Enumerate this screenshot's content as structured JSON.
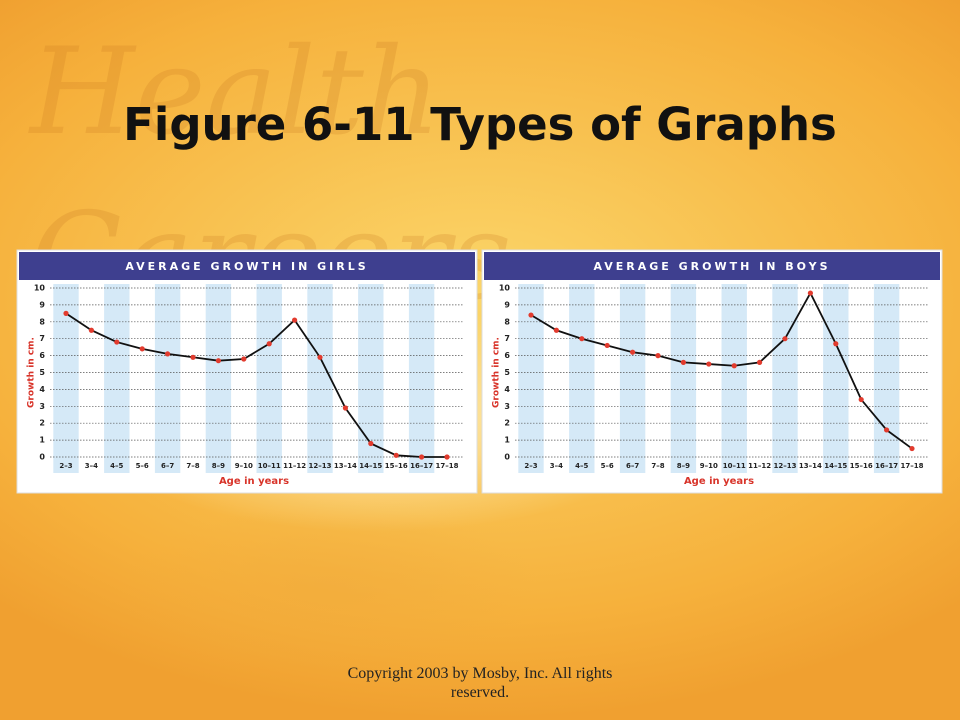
{
  "title": "Figure 6-11 Types of Graphs",
  "background_text": [
    "Health",
    "Careers"
  ],
  "footer": "Copyright 2003 by Mosby, Inc. All rights reserved.",
  "chart_data": [
    {
      "type": "line",
      "title": "AVERAGE GROWTH IN GIRLS",
      "x_label": "Age in years",
      "y_label": "Growth in cm.",
      "categories": [
        "2–3",
        "3–4",
        "4–5",
        "5–6",
        "6–7",
        "7–8",
        "8–9",
        "9–10",
        "10–11",
        "11–12",
        "12–13",
        "13–14",
        "14–15",
        "15–16",
        "16–17",
        "17–18"
      ],
      "values": [
        8.5,
        7.5,
        6.8,
        6.4,
        6.1,
        5.9,
        5.7,
        5.8,
        6.7,
        8.1,
        5.9,
        2.9,
        0.8,
        0.1,
        0,
        0
      ],
      "color": "#111111",
      "marker_color": "#e23b2e",
      "ylim": [
        0,
        10
      ],
      "yticks": [
        0,
        1,
        2,
        3,
        4,
        5,
        6,
        7,
        8,
        9,
        10
      ],
      "grid": true
    },
    {
      "type": "line",
      "title": "AVERAGE GROWTH IN BOYS",
      "x_label": "Age in years",
      "y_label": "Growth in cm.",
      "categories": [
        "2–3",
        "3–4",
        "4–5",
        "5–6",
        "6–7",
        "7–8",
        "8–9",
        "9–10",
        "10–11",
        "11–12",
        "12–13",
        "13–14",
        "14–15",
        "15–16",
        "16–17",
        "17–18"
      ],
      "values": [
        8.4,
        7.5,
        7.0,
        6.6,
        6.2,
        6.0,
        5.6,
        5.5,
        5.4,
        5.6,
        7.0,
        9.7,
        6.7,
        3.4,
        1.6,
        0.5
      ],
      "color": "#111111",
      "marker_color": "#e23b2e",
      "ylim": [
        0,
        10
      ],
      "yticks": [
        0,
        1,
        2,
        3,
        4,
        5,
        6,
        7,
        8,
        9,
        10
      ],
      "grid": true
    }
  ]
}
